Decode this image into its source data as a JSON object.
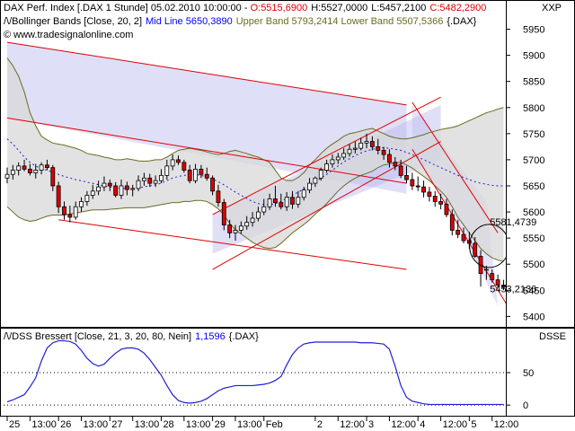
{
  "header": {
    "title_prefix": "DAX Perf. Index [.DAX  1 Stunde] 05.02.2010 10:00:00 - ",
    "open": "O:5515,6900",
    "high": "H:5527,0000",
    "low": "L:5457,2100",
    "close": "C:5482,2900",
    "bb_prefix": "/\\/Bollinger Bands [Close, 20, 2]",
    "bb_mid": "Mid Line 5650,3890",
    "bb_upper_lower": "Upper Band 5793,2414 Lower Band 5507,5366",
    "bb_suffix": "{.DAX}",
    "website": "www.tradesignalonline.com",
    "corner_label": "XXP"
  },
  "lower_panel": {
    "legend_prefix": "/\\/DSS Bressert [Close, 21, 3, 20, 80, Nein]",
    "legend_value": "1,1596",
    "legend_suffix": "{.DAX}",
    "corner_label": "DSSE"
  },
  "annotations": {
    "upper_value": "5581,4739",
    "lower_value": "5453,2136"
  },
  "colors": {
    "up_candle": "#ffffff",
    "down_candle": "#e00000",
    "bollinger_fill": "#d8d8d8",
    "bollinger_line": "#6b6b20",
    "midline": "#1f1fd0",
    "channel_fill": "#b8b8f0",
    "channel_line": "#e00000",
    "dss_line": "#2020d0",
    "open_color": "#e00000",
    "close_color": "#e00000",
    "bb_mid_color": "#0000ff",
    "bb_band_color": "#6b6b20"
  },
  "chart_data": [
    {
      "type": "candlestick",
      "title": "DAX Perf. Index [.DAX  1 Stunde]",
      "y_ticks": [
        5400,
        5450,
        5500,
        5550,
        5600,
        5650,
        5700,
        5750,
        5800,
        5850,
        5900,
        5950
      ],
      "y_tick_labels": [
        "5400",
        "5450",
        "5500",
        "5550",
        "5600",
        "5650",
        "5700",
        "5750",
        "5800",
        "5850",
        "5900",
        "5950"
      ],
      "ylim": [
        5380,
        5975
      ],
      "x_tick_labels": [
        "25",
        "13:00",
        "26",
        "13:00",
        "27",
        "13:00",
        "28",
        "13:00",
        "29",
        "13:00",
        "Feb",
        "2",
        "12:00",
        "3",
        "12:00",
        "4",
        "12:00",
        "5",
        "12:00"
      ],
      "x_tick_positions": [
        0,
        4,
        9,
        13,
        18,
        22,
        27,
        31,
        36,
        40,
        45,
        54,
        58,
        63,
        67,
        72,
        76,
        81,
        85
      ],
      "x_count": 88,
      "candles": {
        "open": [
          5665,
          5672,
          5680,
          5688,
          5682,
          5675,
          5680,
          5690,
          5685,
          5650,
          5610,
          5595,
          5590,
          5610,
          5620,
          5632,
          5640,
          5648,
          5655,
          5650,
          5632,
          5650,
          5643,
          5645,
          5660,
          5665,
          5655,
          5660,
          5670,
          5688,
          5700,
          5695,
          5680,
          5660,
          5682,
          5672,
          5665,
          5640,
          5618,
          5575,
          5560,
          5565,
          5573,
          5580,
          5588,
          5600,
          5610,
          5625,
          5618,
          5610,
          5628,
          5615,
          5628,
          5642,
          5655,
          5665,
          5680,
          5692,
          5700,
          5705,
          5712,
          5720,
          5722,
          5732,
          5735,
          5725,
          5718,
          5710,
          5695,
          5688,
          5670,
          5662,
          5650,
          5648,
          5638,
          5630,
          5620,
          5615,
          5595,
          5565,
          5557,
          5545,
          5540,
          5515,
          5490,
          5482,
          5470,
          5460
        ],
        "high": [
          5685,
          5690,
          5695,
          5700,
          5692,
          5692,
          5695,
          5700,
          5690,
          5658,
          5620,
          5612,
          5620,
          5628,
          5640,
          5652,
          5660,
          5668,
          5662,
          5657,
          5662,
          5658,
          5652,
          5670,
          5675,
          5673,
          5670,
          5682,
          5700,
          5710,
          5708,
          5700,
          5690,
          5692,
          5690,
          5685,
          5670,
          5652,
          5625,
          5585,
          5575,
          5582,
          5592,
          5600,
          5610,
          5625,
          5635,
          5650,
          5635,
          5638,
          5640,
          5640,
          5648,
          5665,
          5668,
          5685,
          5700,
          5710,
          5713,
          5722,
          5730,
          5735,
          5742,
          5750,
          5745,
          5740,
          5725,
          5720,
          5705,
          5700,
          5688,
          5675,
          5668,
          5660,
          5648,
          5640,
          5635,
          5625,
          5605,
          5585,
          5570,
          5562,
          5552,
          5527,
          5497,
          5490,
          5480,
          5470
        ],
        "low": [
          5655,
          5662,
          5670,
          5678,
          5670,
          5664,
          5672,
          5680,
          5640,
          5598,
          5585,
          5580,
          5585,
          5600,
          5612,
          5625,
          5632,
          5640,
          5640,
          5628,
          5625,
          5632,
          5630,
          5640,
          5650,
          5648,
          5648,
          5655,
          5662,
          5680,
          5690,
          5675,
          5655,
          5655,
          5665,
          5660,
          5632,
          5610,
          5565,
          5550,
          5545,
          5558,
          5566,
          5572,
          5582,
          5594,
          5604,
          5610,
          5605,
          5602,
          5606,
          5608,
          5622,
          5636,
          5648,
          5660,
          5675,
          5685,
          5692,
          5700,
          5706,
          5712,
          5718,
          5722,
          5718,
          5710,
          5700,
          5685,
          5680,
          5665,
          5655,
          5642,
          5640,
          5628,
          5620,
          5610,
          5605,
          5590,
          5555,
          5550,
          5540,
          5530,
          5512,
          5457,
          5470,
          5465,
          5455,
          5450
        ],
        "close": [
          5672,
          5680,
          5688,
          5682,
          5675,
          5680,
          5690,
          5685,
          5650,
          5610,
          5595,
          5590,
          5610,
          5620,
          5632,
          5640,
          5648,
          5655,
          5650,
          5632,
          5650,
          5643,
          5645,
          5660,
          5665,
          5655,
          5660,
          5670,
          5688,
          5700,
          5695,
          5680,
          5660,
          5682,
          5672,
          5665,
          5640,
          5618,
          5575,
          5560,
          5565,
          5573,
          5580,
          5588,
          5600,
          5610,
          5625,
          5618,
          5610,
          5628,
          5615,
          5628,
          5642,
          5655,
          5665,
          5680,
          5692,
          5700,
          5705,
          5712,
          5720,
          5722,
          5732,
          5735,
          5725,
          5718,
          5710,
          5695,
          5688,
          5670,
          5662,
          5650,
          5648,
          5638,
          5630,
          5620,
          5615,
          5595,
          5565,
          5557,
          5545,
          5540,
          5515,
          5482,
          5490,
          5470,
          5460,
          5456
        ]
      },
      "bollinger": {
        "upper": [
          5895,
          5880,
          5860,
          5830,
          5790,
          5765,
          5745,
          5738,
          5732,
          5730,
          5728,
          5725,
          5722,
          5718,
          5712,
          5710,
          5708,
          5705,
          5703,
          5700,
          5700,
          5702,
          5700,
          5698,
          5697,
          5698,
          5700,
          5700,
          5705,
          5712,
          5718,
          5720,
          5722,
          5720,
          5718,
          5715,
          5712,
          5710,
          5712,
          5716,
          5718,
          5715,
          5712,
          5708,
          5705,
          5700,
          5695,
          5680,
          5665,
          5660,
          5660,
          5666,
          5675,
          5690,
          5700,
          5712,
          5722,
          5730,
          5737,
          5745,
          5750,
          5752,
          5755,
          5758,
          5760,
          5755,
          5750,
          5745,
          5742,
          5740,
          5740,
          5742,
          5745,
          5748,
          5752,
          5755,
          5758,
          5760,
          5762,
          5765,
          5770,
          5775,
          5780,
          5785,
          5790,
          5793,
          5797,
          5800
        ],
        "middle": [
          5740,
          5730,
          5718,
          5705,
          5695,
          5688,
          5683,
          5680,
          5676,
          5672,
          5668,
          5665,
          5662,
          5660,
          5657,
          5655,
          5652,
          5650,
          5648,
          5646,
          5645,
          5645,
          5645,
          5646,
          5648,
          5650,
          5652,
          5655,
          5660,
          5665,
          5668,
          5670,
          5672,
          5672,
          5670,
          5667,
          5663,
          5658,
          5652,
          5645,
          5638,
          5632,
          5626,
          5620,
          5616,
          5614,
          5614,
          5616,
          5620,
          5626,
          5632,
          5638,
          5644,
          5650,
          5657,
          5665,
          5672,
          5680,
          5688,
          5696,
          5702,
          5708,
          5713,
          5717,
          5720,
          5722,
          5723,
          5722,
          5720,
          5718,
          5714,
          5710,
          5705,
          5700,
          5695,
          5690,
          5685,
          5680,
          5675,
          5670,
          5666,
          5662,
          5658,
          5655,
          5653,
          5651,
          5650,
          5650
        ],
        "lower": [
          5610,
          5600,
          5590,
          5585,
          5582,
          5584,
          5588,
          5592,
          5594,
          5594,
          5594,
          5596,
          5598,
          5600,
          5602,
          5604,
          5604,
          5604,
          5605,
          5606,
          5607,
          5608,
          5608,
          5608,
          5608,
          5610,
          5612,
          5614,
          5616,
          5618,
          5618,
          5620,
          5620,
          5622,
          5622,
          5620,
          5614,
          5606,
          5594,
          5578,
          5566,
          5558,
          5550,
          5542,
          5536,
          5532,
          5530,
          5532,
          5540,
          5550,
          5560,
          5568,
          5576,
          5585,
          5596,
          5605,
          5616,
          5628,
          5640,
          5650,
          5658,
          5665,
          5670,
          5674,
          5678,
          5685,
          5690,
          5692,
          5695,
          5695,
          5690,
          5684,
          5676,
          5668,
          5660,
          5650,
          5640,
          5628,
          5610,
          5590,
          5575,
          5560,
          5545,
          5530,
          5520,
          5512,
          5508,
          5505
        ]
      }
    },
    {
      "type": "line",
      "title": "DSS Bressert [Close, 21, 3, 20, 80, Nein]",
      "y_ticks": [
        0,
        50
      ],
      "y_tick_labels": [
        "0",
        "50"
      ],
      "ylim": [
        -15,
        115
      ],
      "series": [
        {
          "values": [
            5,
            8,
            12,
            16,
            28,
            42,
            68,
            88,
            96,
            99,
            99,
            98,
            94,
            84,
            72,
            64,
            60,
            63,
            72,
            80,
            86,
            88,
            88,
            86,
            80,
            70,
            58,
            46,
            30,
            16,
            7,
            4,
            3,
            4,
            6,
            10,
            16,
            22,
            26,
            28,
            30,
            30,
            30,
            30,
            31,
            32,
            34,
            38,
            44,
            62,
            78,
            88,
            94,
            96,
            97,
            97,
            97,
            97,
            97,
            97,
            97,
            97,
            96,
            96,
            96,
            95,
            94,
            86,
            60,
            30,
            12,
            6,
            4,
            2,
            1,
            1,
            1,
            1,
            1,
            1,
            1,
            1,
            1,
            1,
            1,
            1,
            1,
            1
          ]
        }
      ]
    }
  ]
}
